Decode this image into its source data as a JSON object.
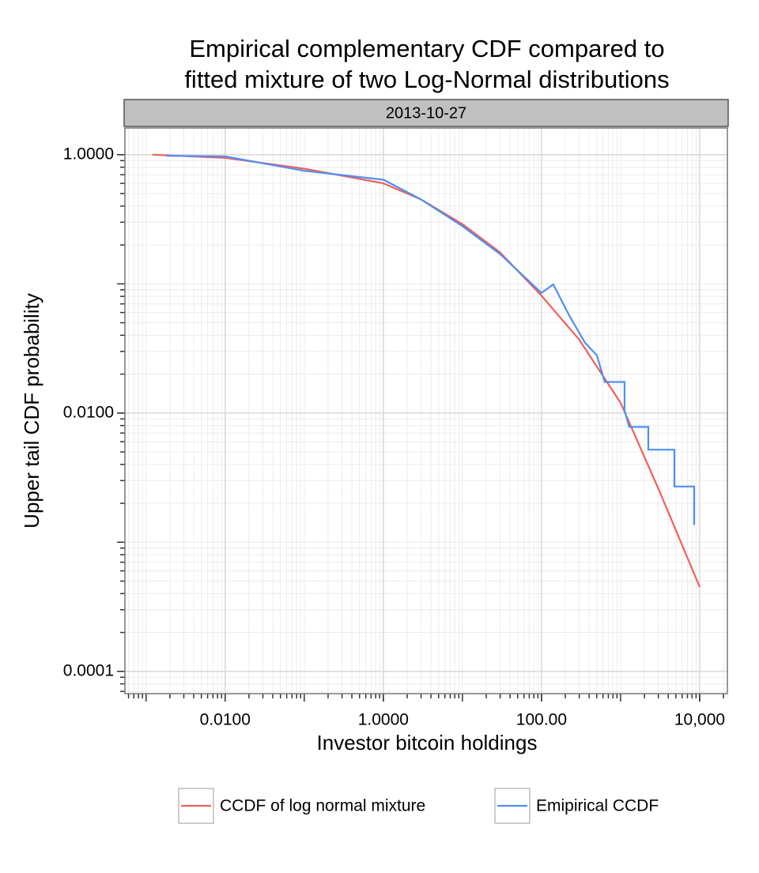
{
  "chart_data": {
    "type": "line",
    "title": [
      "Empirical complementary CDF compared to",
      "fitted mixture of two Log-Normal distributions"
    ],
    "facet": "2013-10-27",
    "x_label": "Investor bitcoin holdings",
    "y_label": "Upper tail CDF probability",
    "log_x": true,
    "log_y": true,
    "grid": true,
    "legend": "bottom",
    "xlim": [
      0.00054,
      22400
    ],
    "ylim": [
      6.72e-05,
      1.61
    ],
    "xticks": [
      {
        "value": 0.01,
        "label": "0.0100"
      },
      {
        "value": 1,
        "label": "1.0000"
      },
      {
        "value": 100,
        "label": "100.00"
      },
      {
        "value": 10000,
        "label": "10,000"
      }
    ],
    "yticks": [
      {
        "value": 1,
        "label": "1.0000"
      },
      {
        "value": 0.01,
        "label": "0.0100"
      },
      {
        "value": 0.0001,
        "label": "0.0001"
      }
    ],
    "series": [
      {
        "name": "CCDF of log normal mixture",
        "color": "#f0605a",
        "x": [
          0.0012,
          0.01,
          0.1,
          1,
          3,
          10,
          30,
          100,
          300,
          1000,
          3000,
          10000
        ],
        "values": [
          1.0,
          0.945,
          0.78,
          0.6,
          0.45,
          0.29,
          0.175,
          0.081,
          0.037,
          0.012,
          0.0026,
          0.00045
        ]
      },
      {
        "name": "Emipirical CCDF",
        "color": "#4f8ef5",
        "x": [
          0.0018,
          0.01,
          0.1,
          1,
          3,
          10,
          30,
          100,
          141,
          224,
          355,
          501,
          631,
          1122,
          1122,
          1288,
          2239,
          2239,
          4786,
          4786,
          8511,
          8511
        ],
        "values": [
          0.98,
          0.97,
          0.75,
          0.64,
          0.45,
          0.28,
          0.17,
          0.085,
          0.099,
          0.057,
          0.035,
          0.028,
          0.0174,
          0.0174,
          0.0105,
          0.0078,
          0.0078,
          0.0052,
          0.0052,
          0.0027,
          0.0027,
          0.00136
        ]
      }
    ]
  }
}
